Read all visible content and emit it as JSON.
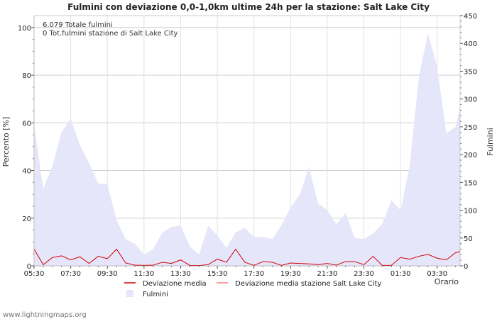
{
  "chart_data": {
    "type": "area",
    "title": "Fulmini con deviazione 0,0-1,0km ultime 24h per la stazione: Salt Lake City",
    "xlabel": "Orario",
    "ylabel_left": "Percento   [%]",
    "ylabel_right": "Fulmini",
    "ylim_left": [
      0,
      105
    ],
    "ylim_right": [
      0,
      450
    ],
    "yticks_left": [
      "0",
      "20",
      "40",
      "60",
      "80",
      "100"
    ],
    "yticks_right": [
      "0",
      "50",
      "100",
      "150",
      "200",
      "250",
      "300",
      "350",
      "400",
      "450"
    ],
    "xticks": [
      "05:30",
      "07:30",
      "09:30",
      "11:30",
      "13:30",
      "15:30",
      "17:30",
      "19:30",
      "21:30",
      "23:30",
      "01:30",
      "03:30"
    ],
    "x_hours_start": "05:30",
    "x_step_hours": 0.5,
    "x_range_hours": [
      0,
      23.25
    ],
    "annotations": [
      "6.079 Totale fulmini",
      "0 Tot.fulmini stazione di Salt Lake City"
    ],
    "series": [
      {
        "name": "Fulmini",
        "axis": "right",
        "color": "#e6e6fa",
        "values": [
          255,
          138,
          180,
          240,
          265,
          218,
          185,
          148,
          147,
          82,
          48,
          40,
          20,
          30,
          60,
          70,
          72,
          35,
          20,
          72,
          55,
          32,
          60,
          68,
          52,
          52,
          48,
          73,
          105,
          128,
          178,
          112,
          100,
          75,
          95,
          50,
          48,
          58,
          75,
          118,
          100,
          180,
          340,
          418,
          358,
          238,
          250,
          285
        ]
      },
      {
        "name": "Deviazione media",
        "axis": "left",
        "color": "#d00000",
        "values": [
          7,
          0.5,
          3.5,
          4.2,
          2.5,
          3.8,
          1.0,
          4.0,
          3.0,
          7.0,
          1.2,
          0.3,
          0.2,
          0.3,
          1.5,
          1.0,
          2.5,
          0.2,
          0.1,
          0.5,
          2.8,
          1.5,
          7.0,
          1.5,
          0.2,
          1.8,
          1.5,
          0.2,
          1.2,
          1.0,
          0.8,
          0.5,
          1.0,
          0.3,
          1.8,
          1.8,
          0.5,
          4.0,
          0.2,
          0.2,
          3.5,
          2.8,
          4.0,
          4.8,
          3.2,
          2.5,
          5.5,
          6.0
        ]
      }
    ],
    "legend": [
      {
        "label": "Deviazione media",
        "color": "#d00000",
        "kind": "line"
      },
      {
        "label": "Deviazione media stazione Salt Lake City",
        "color": "#ff8080",
        "kind": "line"
      },
      {
        "label": "Fulmini",
        "color": "#e6e6fa",
        "kind": "area"
      }
    ]
  },
  "footer": "www.lightningmaps.org"
}
